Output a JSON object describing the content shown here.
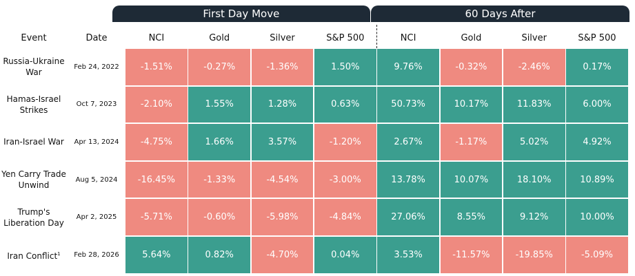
{
  "groups": [
    {
      "label": "First Day Move",
      "span": 4
    },
    {
      "label": "60 Days After",
      "span": 4
    }
  ],
  "headers": [
    "Event",
    "Date",
    "NCI",
    "Gold",
    "Silver",
    "S&P 500",
    "NCI",
    "Gold",
    "Silver",
    "S&P 500"
  ],
  "rows": [
    {
      "event": "Russia-Ukraine War",
      "date": "Feb 24, 2022",
      "cells": [
        "-1.51%",
        "-0.27%",
        "-1.36%",
        "1.50%",
        "9.76%",
        "-0.32%",
        "-2.46%",
        "0.17%"
      ]
    },
    {
      "event": "Hamas-Israel Strikes",
      "date": "Oct 7, 2023",
      "cells": [
        "-2.10%",
        "1.55%",
        "1.28%",
        "0.63%",
        "50.73%",
        "10.17%",
        "11.83%",
        "6.00%"
      ]
    },
    {
      "event": "Iran-Israel War",
      "date": "Apr 13, 2024",
      "cells": [
        "-4.75%",
        "1.66%",
        "3.57%",
        "-1.20%",
        "2.67%",
        "-1.17%",
        "5.02%",
        "4.92%"
      ]
    },
    {
      "event": "Yen Carry Trade Unwind",
      "date": "Aug 5, 2024",
      "cells": [
        "-16.45%",
        "-1.33%",
        "-4.54%",
        "-3.00%",
        "13.78%",
        "10.07%",
        "18.10%",
        "10.89%"
      ]
    },
    {
      "event": "Trump's Liberation Day",
      "date": "Apr 2, 2025",
      "cells": [
        "-5.71%",
        "-0.60%",
        "-5.98%",
        "-4.84%",
        "27.06%",
        "8.55%",
        "9.12%",
        "10.00%"
      ]
    },
    {
      "event": "Iran Conflict",
      "note": "1",
      "date": "Feb 28, 2026",
      "cells": [
        "5.64%",
        "0.82%",
        "-4.70%",
        "0.04%",
        "3.53%",
        "-11.57%",
        "-19.85%",
        "-5.09%"
      ]
    }
  ]
}
